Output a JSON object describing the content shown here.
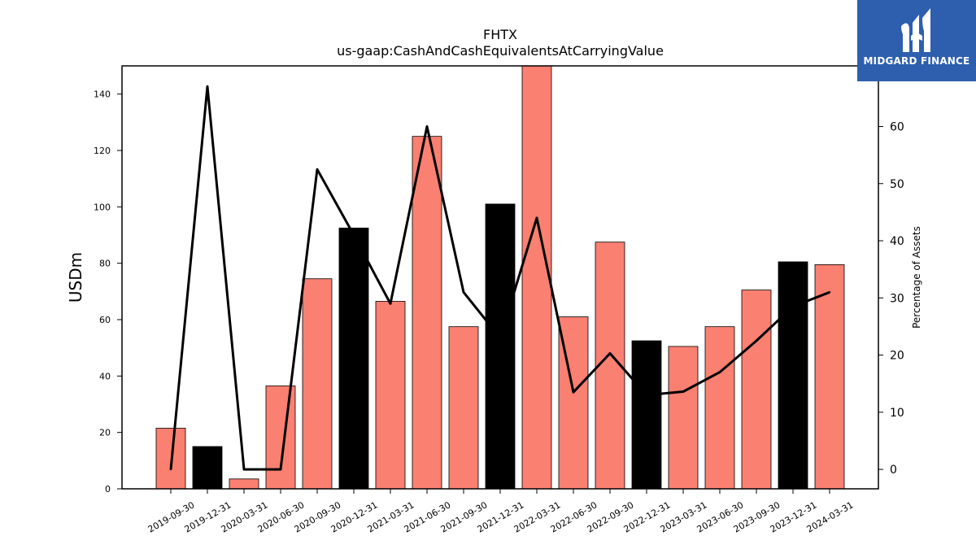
{
  "chart_data": {
    "type": "bar",
    "title": "FHTX",
    "subtitle": "us-gaap:CashAndCashEquivalentsAtCarryingValue",
    "ylabel": "USDm",
    "ylabel_right": "Percentage of Assets",
    "categories": [
      "2019-09-30",
      "2019-12-31",
      "2020-03-31",
      "2020-06-30",
      "2020-09-30",
      "2020-12-31",
      "2021-03-31",
      "2021-06-30",
      "2021-09-30",
      "2021-12-31",
      "2022-03-31",
      "2022-06-30",
      "2022-09-30",
      "2022-12-31",
      "2023-03-31",
      "2023-06-30",
      "2023-09-30",
      "2023-12-31",
      "2024-03-31"
    ],
    "series": [
      {
        "type": "bar",
        "values": [
          21.5,
          15.0,
          3.5,
          36.5,
          74.5,
          92.5,
          66.5,
          125.0,
          57.5,
          101.0,
          150.0,
          61.0,
          87.5,
          52.5,
          50.5,
          57.5,
          70.5,
          80.5,
          79.5
        ]
      },
      {
        "type": "line",
        "axis": "right",
        "values": [
          0.0,
          67.0,
          0.0,
          0.0,
          52.5,
          41.0,
          29.0,
          60.0,
          31.0,
          23.0,
          44.0,
          13.5,
          20.3,
          13.0,
          13.6,
          17.0,
          22.5,
          28.5,
          31.0
        ]
      }
    ],
    "bar_colors": [
      "#fa8072",
      "#000000",
      "#fa8072",
      "#fa8072",
      "#fa8072",
      "#000000",
      "#fa8072",
      "#fa8072",
      "#fa8072",
      "#000000",
      "#fa8072",
      "#fa8072",
      "#fa8072",
      "#000000",
      "#fa8072",
      "#fa8072",
      "#fa8072",
      "#000000",
      "#fa8072"
    ],
    "line_color": "#000000",
    "ylim": [
      0,
      150
    ],
    "ylim_right": [
      -3.4,
      70.6
    ],
    "yticks": [
      "0",
      "20",
      "40",
      "60",
      "80",
      "100",
      "120",
      "140"
    ],
    "yticks_right": [
      "0",
      "10",
      "20",
      "30",
      "40",
      "50",
      "60"
    ],
    "grid": false,
    "legend": "none"
  },
  "logo": {
    "text": "MIDGARD FINANCE",
    "background": "#2d5fae"
  }
}
